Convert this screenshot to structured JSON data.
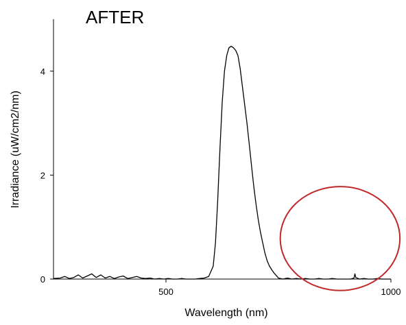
{
  "chart_data": {
    "type": "line",
    "title": "AFTER",
    "xlabel": "Wavelength (nm)",
    "ylabel": "Irradiance (uW/cm2/nm)",
    "xlim": [
      250,
      1000
    ],
    "ylim": [
      0,
      5
    ],
    "xticks": [
      500,
      1000
    ],
    "yticks": [
      0,
      2,
      4
    ],
    "grid": false,
    "annotations": [
      {
        "type": "ellipse",
        "color": "#c0282a",
        "center": [
          887,
          0.78
        ],
        "radius_x": 133,
        "radius_y": 1.0
      }
    ],
    "series": [
      {
        "color": "#000000",
        "x": [
          250,
          265,
          275,
          285,
          295,
          305,
          315,
          325,
          335,
          345,
          355,
          365,
          375,
          385,
          395,
          405,
          415,
          425,
          435,
          445,
          455,
          465,
          475,
          485,
          495,
          505,
          515,
          525,
          535,
          545,
          555,
          565,
          575,
          585,
          595,
          605,
          610,
          615,
          620,
          625,
          630,
          635,
          640,
          645,
          650,
          655,
          660,
          665,
          670,
          675,
          680,
          685,
          690,
          695,
          700,
          705,
          710,
          715,
          720,
          725,
          730,
          735,
          740,
          745,
          750,
          760,
          770,
          780,
          790,
          800,
          810,
          820,
          830,
          840,
          850,
          860,
          870,
          880,
          890,
          900,
          910,
          918,
          920,
          922,
          930,
          940,
          950,
          960,
          970,
          980,
          990,
          1000
        ],
        "y": [
          0.01,
          0.02,
          0.05,
          0.01,
          0.03,
          0.08,
          0.02,
          0.06,
          0.1,
          0.03,
          0.08,
          0.02,
          0.05,
          0.01,
          0.04,
          0.06,
          0.01,
          0.03,
          0.05,
          0.02,
          0.01,
          0.02,
          0.0,
          0.01,
          0.0,
          0.01,
          0.0,
          0.0,
          0.01,
          0.0,
          0.0,
          0.0,
          0.01,
          0.02,
          0.05,
          0.25,
          0.7,
          1.5,
          2.5,
          3.4,
          4.0,
          4.3,
          4.45,
          4.48,
          4.45,
          4.4,
          4.3,
          4.05,
          3.7,
          3.35,
          3.0,
          2.6,
          2.2,
          1.8,
          1.45,
          1.15,
          0.9,
          0.7,
          0.5,
          0.35,
          0.25,
          0.18,
          0.12,
          0.07,
          0.02,
          0.0,
          0.02,
          0.0,
          0.01,
          0.0,
          0.01,
          0.0,
          0.0,
          0.01,
          0.0,
          0.0,
          0.01,
          0.0,
          0.0,
          0.0,
          0.0,
          0.02,
          0.1,
          0.03,
          0.0,
          0.01,
          0.0,
          0.0,
          0.01,
          0.0,
          0.0,
          0.0
        ]
      }
    ]
  }
}
